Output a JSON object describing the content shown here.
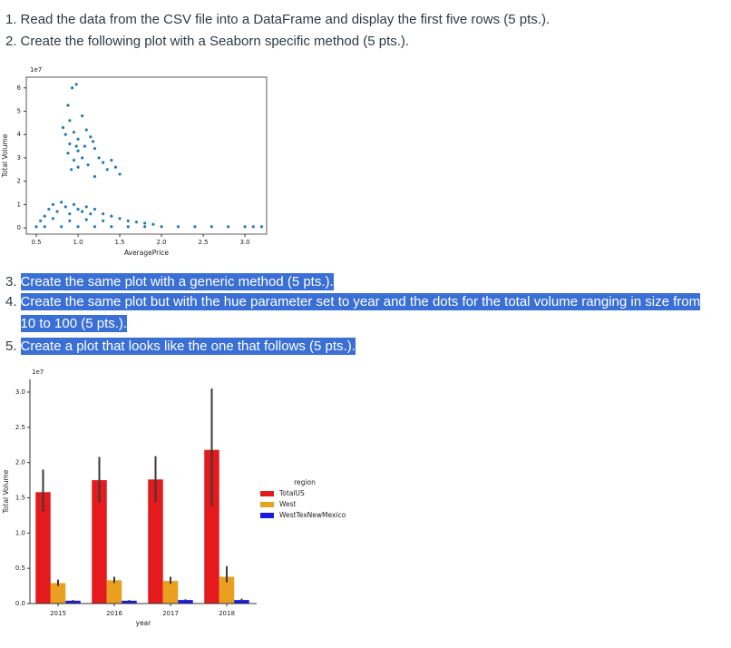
{
  "items": [
    {
      "number": "1.",
      "text": "Read the data from the CSV file into a DataFrame and display the first five rows (5 pts.).",
      "highlighted": false
    },
    {
      "number": "2.",
      "text": "Create the following plot with a Seaborn specific method (5 pts.).",
      "highlighted": false
    },
    {
      "number": "3.",
      "text": "Create the same plot with a generic method (5 pts.).",
      "highlighted": true
    },
    {
      "number": "4.",
      "text": "Create the same plot but with the hue parameter set to year and the dots for the total volume ranging in size from 10 to 100 (5 pts.).",
      "highlighted": true
    },
    {
      "number": "5.",
      "text": "Create a plot that looks like the one that follows (5 pts.).",
      "highlighted": true
    }
  ],
  "charts": [
    {
      "type": "scatter",
      "x_label": "AveragePrice",
      "y_label": "Total Volume",
      "offset_label": "1e7",
      "color": "#1f77b4",
      "xlim": [
        0.38,
        3.26
      ],
      "ylim": [
        -0.27,
        6.46
      ],
      "xticks": [
        0.5,
        {
          "value": 1,
          "label": "1.0"
        },
        1.5,
        {
          "value": 2,
          "label": "2.0"
        },
        2.5,
        {
          "value": 3,
          "label": "3.0"
        }
      ],
      "yticks": [
        0,
        1,
        2,
        3,
        4,
        5,
        6
      ],
      "x": [
        0.93,
        0.98,
        0.88,
        1.05,
        0.9,
        0.82,
        0.85,
        0.95,
        1.0,
        1.1,
        1.15,
        0.9,
        1.0,
        1.08,
        1.2,
        1.25,
        0.88,
        0.95,
        1.05,
        1.12,
        0.92,
        1.3,
        1.35,
        1.45,
        1.5,
        1.2,
        1.0,
        1.18,
        0.98,
        1.4,
        0.55,
        0.6,
        0.65,
        0.7,
        0.75,
        0.8,
        0.85,
        0.9,
        0.95,
        1.0,
        1.05,
        1.1,
        1.15,
        1.2,
        1.3,
        1.4,
        1.5,
        1.6,
        1.7,
        1.8,
        1.9,
        0.7,
        0.9,
        1.1,
        1.3,
        0.5,
        0.6,
        0.8,
        1.0,
        1.2,
        1.4,
        1.6,
        1.8,
        2.0,
        2.2,
        2.4,
        2.6,
        2.8,
        3.0,
        3.1,
        3.2
      ],
      "y": [
        6.0,
        6.15,
        5.25,
        4.8,
        4.6,
        4.3,
        4.0,
        4.1,
        3.8,
        4.2,
        3.9,
        3.6,
        3.3,
        3.5,
        3.4,
        3.0,
        3.2,
        2.9,
        3.0,
        2.7,
        2.5,
        2.8,
        2.5,
        2.6,
        2.3,
        2.2,
        2.6,
        3.7,
        3.5,
        2.9,
        0.3,
        0.5,
        0.8,
        1.0,
        0.7,
        1.1,
        0.9,
        0.6,
        1.0,
        0.8,
        0.7,
        0.9,
        0.6,
        0.8,
        0.6,
        0.5,
        0.4,
        0.3,
        0.25,
        0.2,
        0.15,
        0.4,
        0.3,
        0.35,
        0.3,
        0.05,
        0.05,
        0.05,
        0.05,
        0.05,
        0.05,
        0.05,
        0.05,
        0.05,
        0.05,
        0.05,
        0.05,
        0.05,
        0.05,
        0.05,
        0.05
      ]
    },
    {
      "type": "bar",
      "x_label": "year",
      "y_label": "Total Volume",
      "offset_label": "1e7",
      "legend_title": "region",
      "categories": [
        "2015",
        "2016",
        "2017",
        "2018"
      ],
      "ylim": [
        0,
        3.18
      ],
      "yticks": [
        {
          "value": 0,
          "label": "0.0"
        },
        0.5,
        {
          "value": 1,
          "label": "1.0"
        },
        1.5,
        {
          "value": 2,
          "label": "2.0"
        },
        2.5,
        {
          "value": 3,
          "label": "3.0"
        }
      ],
      "series": [
        {
          "name": "TotalUS",
          "color": "#e41a1c",
          "values": [
            1.58,
            1.75,
            1.76,
            2.18
          ],
          "ci": [
            [
              1.31,
              1.9
            ],
            [
              1.44,
              2.08
            ],
            [
              1.44,
              2.09
            ],
            [
              1.38,
              3.05
            ]
          ]
        },
        {
          "name": "West",
          "color": "#e8a01e",
          "values": [
            0.29,
            0.33,
            0.32,
            0.38
          ],
          "ci": [
            [
              0.25,
              0.34
            ],
            [
              0.29,
              0.38
            ],
            [
              0.28,
              0.38
            ],
            [
              0.3,
              0.53
            ]
          ]
        },
        {
          "name": "WestTexNewMexico",
          "color": "#1a1ae0",
          "values": [
            0.04,
            0.04,
            0.05,
            0.05
          ],
          "ci": [
            [
              0.03,
              0.05
            ],
            [
              0.03,
              0.05
            ],
            [
              0.04,
              0.06
            ],
            [
              0.04,
              0.07
            ]
          ]
        }
      ]
    }
  ]
}
